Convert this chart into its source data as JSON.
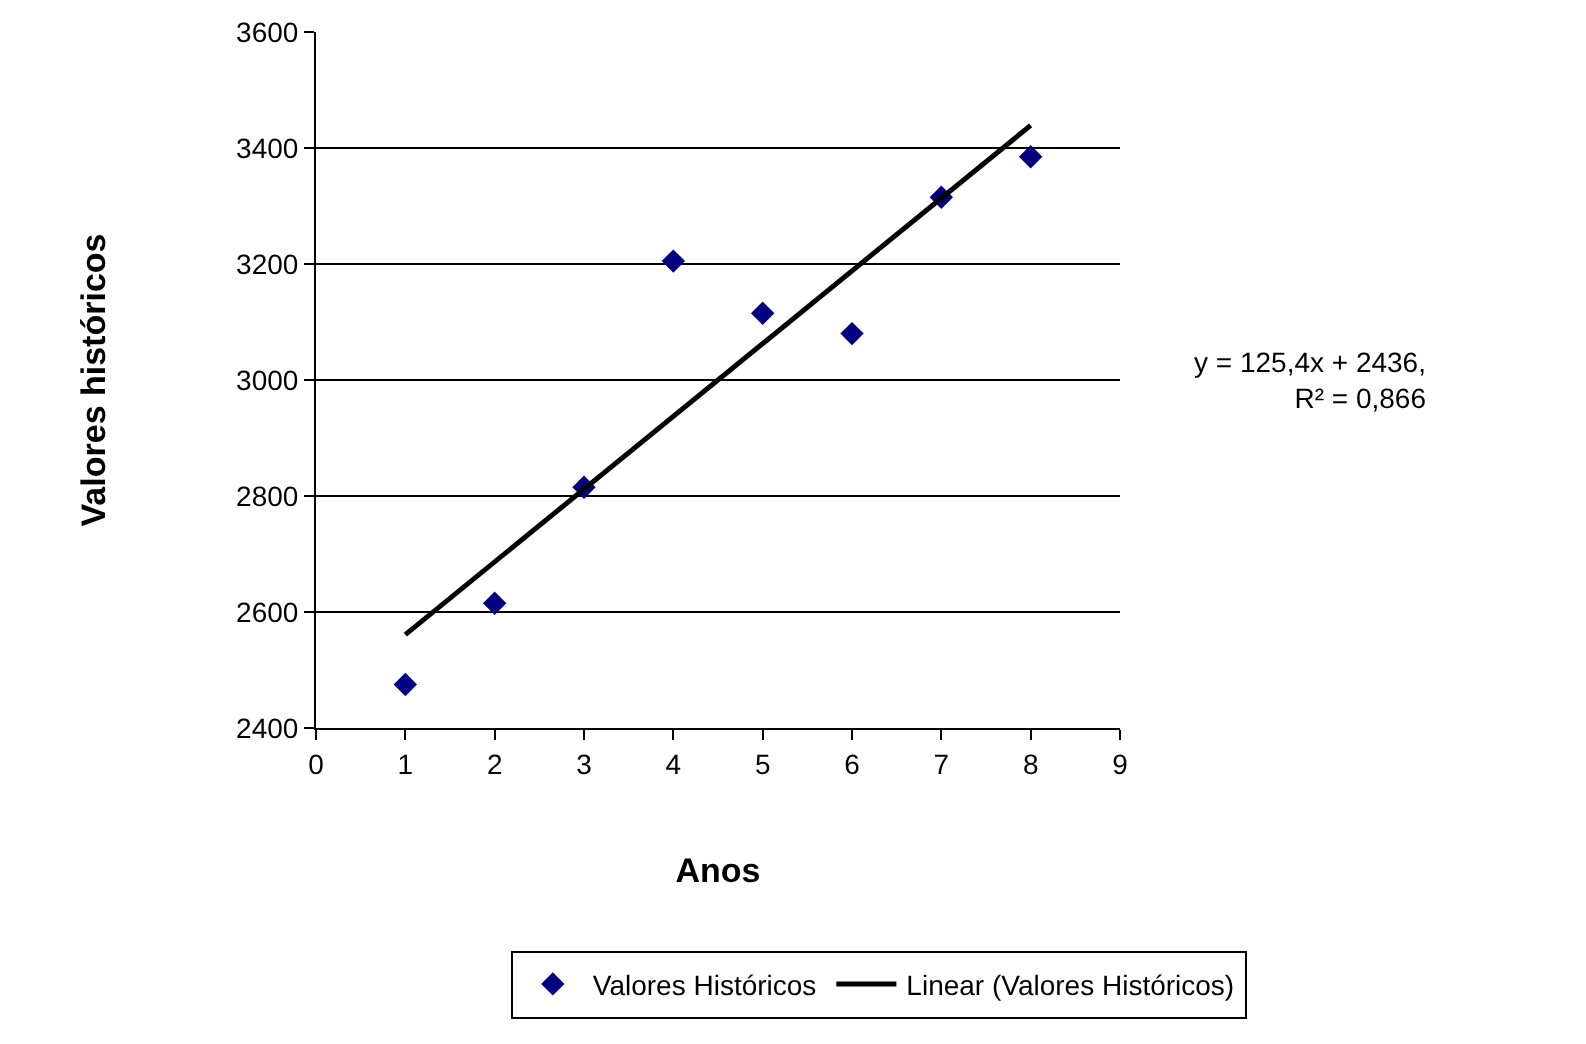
{
  "chart_data": {
    "type": "scatter",
    "xlabel": "Anos",
    "ylabel": "Valores históricos",
    "xlim": [
      0,
      9
    ],
    "xticks": [
      0,
      1,
      2,
      3,
      4,
      5,
      6,
      7,
      8,
      9
    ],
    "ylim": [
      2400,
      3600
    ],
    "yticks": [
      2400,
      2600,
      2800,
      3000,
      3200,
      3400,
      3600
    ],
    "grid": "y",
    "legend": "bottom",
    "series": [
      {
        "name": "Valores Históricos",
        "marker": "diamond",
        "color": "#000080",
        "x": [
          1,
          2,
          3,
          4,
          5,
          6,
          7,
          8
        ],
        "values": [
          2475,
          2615,
          2815,
          3205,
          3115,
          3080,
          3315,
          3385
        ]
      },
      {
        "name": "Linear (Valores Históricos)",
        "type": "line",
        "color": "#000000",
        "line_style": "solid",
        "x": [
          1,
          8
        ],
        "values": [
          2561,
          3439
        ]
      }
    ],
    "annotations": [
      "y = 125,4x + 2436,\nR² = 0,866"
    ]
  }
}
